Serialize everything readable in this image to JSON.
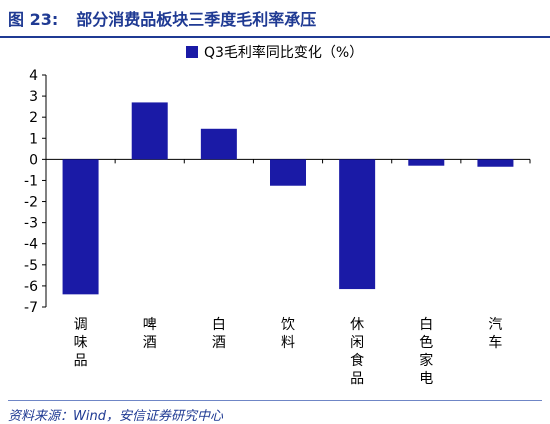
{
  "header": {
    "figure_label": "图 23:",
    "title": "部分消费品板块三季度毛利率承压"
  },
  "source": "资料来源：Wind，安信证券研究中心",
  "chart_data": {
    "type": "bar",
    "categories": [
      "调味品",
      "啤酒",
      "白酒",
      "饮料",
      "休闲食品",
      "白色家电",
      "汽车"
    ],
    "series": [
      {
        "name": "Q3毛利率同比变化（%）",
        "values": [
          -6.4,
          2.7,
          1.45,
          -1.25,
          -6.15,
          -0.3,
          -0.35
        ]
      }
    ],
    "ylim": [
      -7,
      4
    ],
    "yticks": [
      4,
      3,
      2,
      1,
      0,
      -1,
      -2,
      -3,
      -4,
      -5,
      -6,
      -7
    ],
    "bar_color": "#1a1aa6",
    "legend_position": "top-center"
  }
}
